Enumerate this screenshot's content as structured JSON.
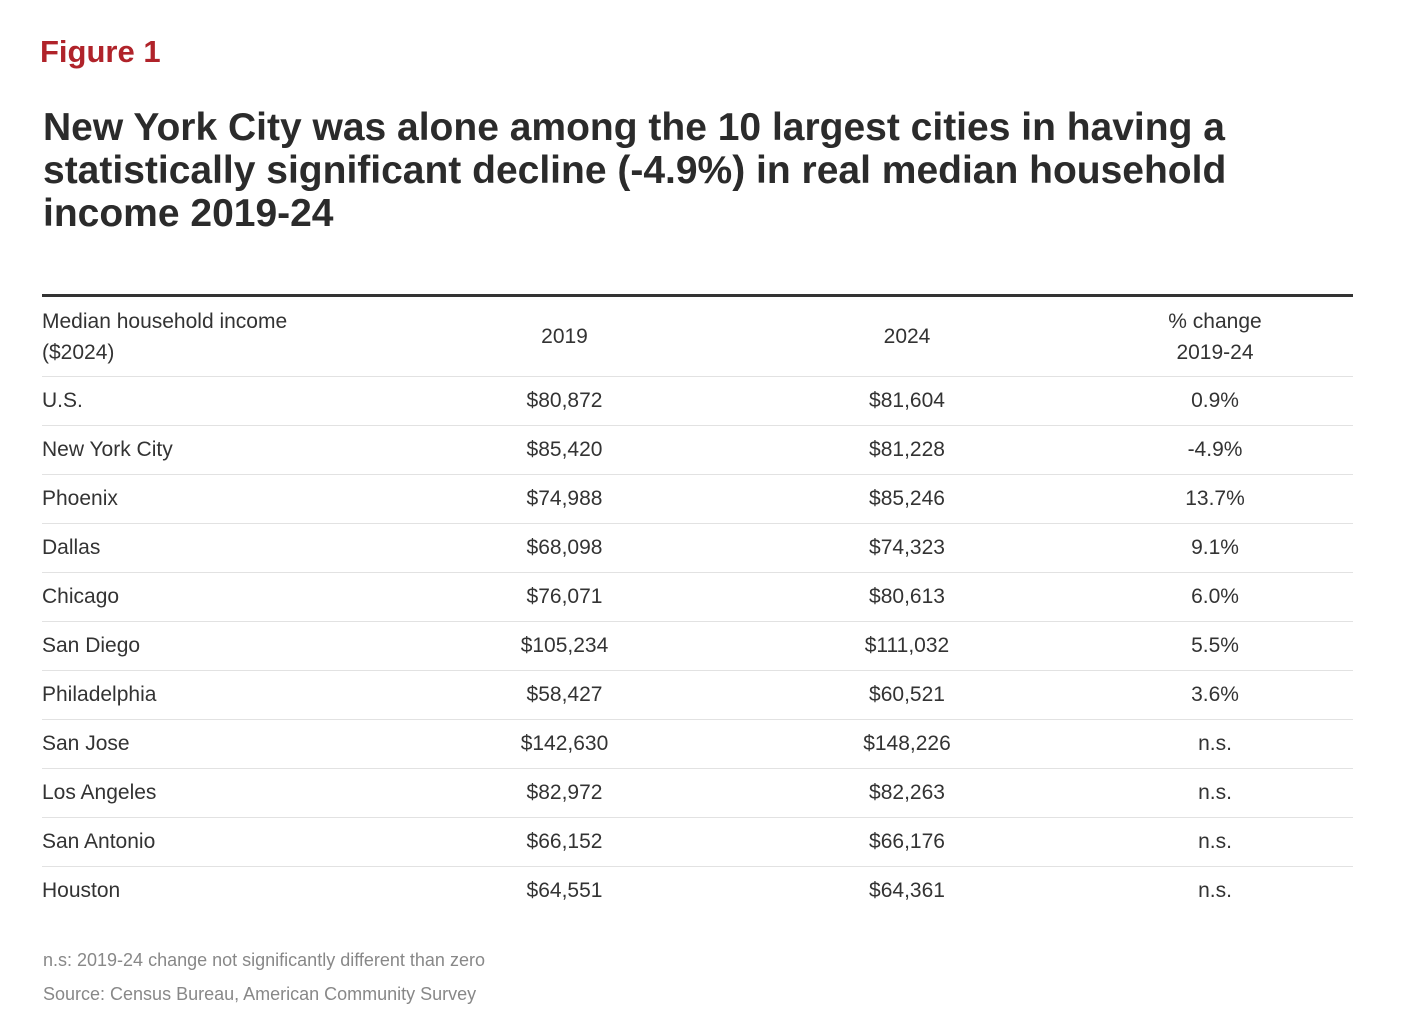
{
  "figure_label": "Figure 1",
  "title": "New York City was alone among the 10 largest cities in having a statistically significant decline (-4.9%) in real median household income 2019-24",
  "chart_data": {
    "type": "table",
    "columns": [
      "Median household income ($2024)",
      "2019",
      "2024",
      "% change 2019-24"
    ],
    "header_lines": [
      [
        "Median household income",
        "($2024)"
      ],
      [
        "2019"
      ],
      [
        "2024"
      ],
      [
        "% change",
        "2019-24"
      ]
    ],
    "rows": [
      [
        "U.S.",
        "$80,872",
        "$81,604",
        "0.9%"
      ],
      [
        "New York City",
        "$85,420",
        "$81,228",
        "-4.9%"
      ],
      [
        "Phoenix",
        "$74,988",
        "$85,246",
        "13.7%"
      ],
      [
        "Dallas",
        "$68,098",
        "$74,323",
        "9.1%"
      ],
      [
        "Chicago",
        "$76,071",
        "$80,613",
        "6.0%"
      ],
      [
        "San Diego",
        "$105,234",
        "$111,032",
        "5.5%"
      ],
      [
        "Philadelphia",
        "$58,427",
        "$60,521",
        "3.6%"
      ],
      [
        "San Jose",
        "$142,630",
        "$148,226",
        "n.s."
      ],
      [
        "Los Angeles",
        "$82,972",
        "$82,263",
        "n.s."
      ],
      [
        "San Antonio",
        "$66,152",
        "$66,176",
        "n.s."
      ],
      [
        "Houston",
        "$64,551",
        "$64,361",
        "n.s."
      ]
    ]
  },
  "footnotes": {
    "ns_note": "n.s: 2019-24 change not significantly different than zero",
    "source": "Source: Census Bureau, American Community Survey"
  },
  "colors": {
    "accent": "#b0232a",
    "text": "#333333",
    "muted": "#888888"
  }
}
